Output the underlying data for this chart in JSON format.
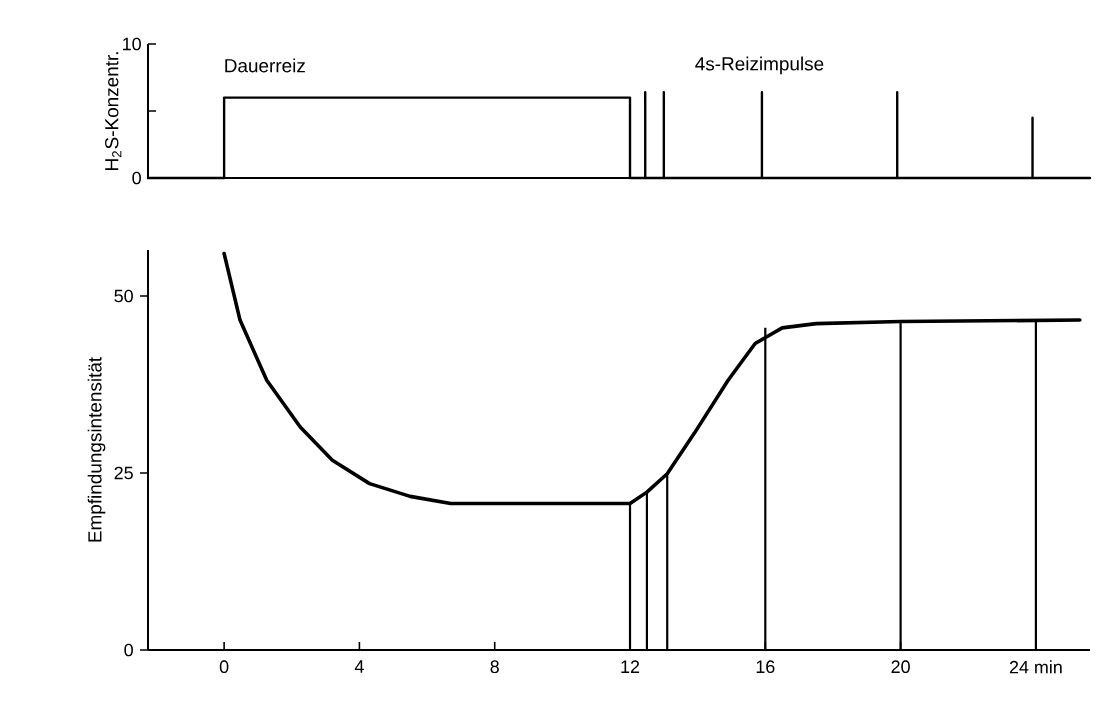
{
  "chart_data": [
    {
      "type": "line",
      "ylabel": "H$_{2}$S-Konzentr.",
      "xlim": [
        -2.25,
        25.6
      ],
      "ylim": [
        0,
        10
      ],
      "yticks": [
        0,
        {
          "value": 5,
          "label": null
        },
        10
      ],
      "tick_labels": "y",
      "annotations": [
        "Dauerreiz",
        "4s-Reizimpulse"
      ],
      "series": [
        {
          "color": "#000000",
          "x": [
            -2.25,
            0,
            0,
            12,
            12,
            12.45,
            12.45,
            12.45,
            13,
            13,
            13,
            15.9,
            15.9,
            15.9,
            19.9,
            19.9,
            19.9,
            23.9,
            23.9,
            23.9,
            25.6
          ],
          "values": [
            0,
            0,
            6,
            6,
            0,
            0,
            6.4,
            0,
            0,
            6.4,
            0,
            0,
            6.4,
            0,
            0,
            6.4,
            0,
            0,
            4.5,
            0,
            0
          ]
        }
      ]
    },
    {
      "type": "line",
      "ylabel": "Empfindungsintensität",
      "xlim": [
        -2.25,
        25.6
      ],
      "ylim": [
        0,
        56.5
      ],
      "yticks": [
        0,
        25,
        50
      ],
      "xticks": [
        0,
        4,
        8,
        12,
        16,
        20,
        {
          "value": 24,
          "label": "24 min"
        }
      ],
      "series": [
        {
          "color": "#000000",
          "x": [
            0,
            0.47,
            1.26,
            2.25,
            3.2,
            4.3,
            5.5,
            6.7,
            8,
            10,
            12,
            12.5,
            13.1,
            13.9,
            14.9,
            15.7,
            16.5,
            17.5,
            20,
            25.3
          ],
          "values": [
            56,
            46.6,
            38.1,
            31.5,
            26.8,
            23.5,
            21.7,
            20.7,
            20.7,
            20.7,
            20.7,
            22.3,
            24.9,
            30.6,
            38.1,
            43.3,
            45.5,
            46.1,
            46.4,
            46.6
          ]
        },
        {
          "type": "bar",
          "color": "#000000",
          "x": [
            12,
            12.5,
            13.1,
            16,
            20,
            24
          ],
          "values": [
            20.7,
            22.3,
            24.9,
            45.5,
            46.4,
            46.5
          ]
        }
      ]
    }
  ]
}
